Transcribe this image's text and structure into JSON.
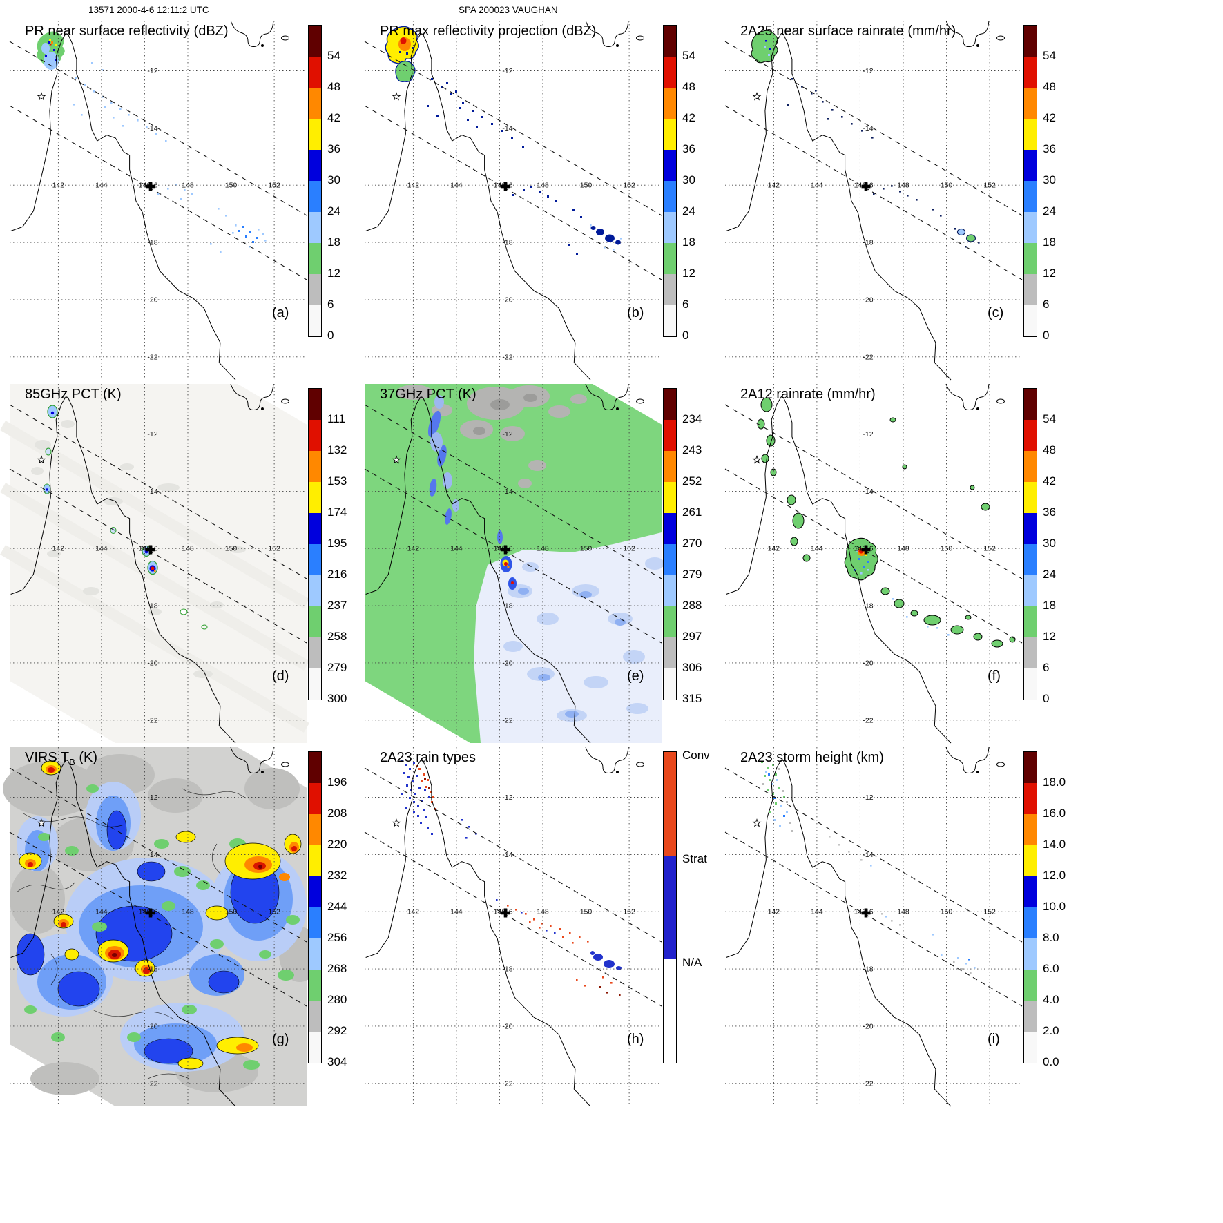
{
  "header": {
    "orbit": "13571 2000-4-6 12:11:2 UTC",
    "case": "SPA 200023 VAUGHAN"
  },
  "grid": {
    "lons": [
      "142",
      "144",
      "146",
      "148",
      "150",
      "152"
    ],
    "lats": [
      "-12",
      "-14",
      "-16",
      "-18",
      "-20",
      "-22"
    ]
  },
  "colors": {
    "scale": [
      "#600000",
      "#e01000",
      "#ff8800",
      "#ffee00",
      "#0000dd",
      "#2a7fff",
      "#9ec9ff",
      "#6fcf6f",
      "#bdbdbd",
      "#f8f8f8"
    ],
    "raintype": {
      "conv": "#e8481c",
      "strat": "#2222cc",
      "na": "#ffffff"
    }
  },
  "panels": [
    {
      "id": "a",
      "title": "PR near surface reflectivity (dBZ)",
      "letter": "(a)",
      "cbar_type": "scale",
      "cbar_ticks": [
        "54",
        "48",
        "42",
        "36",
        "30",
        "24",
        "18",
        "12",
        "6",
        "0"
      ]
    },
    {
      "id": "b",
      "title": "PR max reflectivity projection (dBZ)",
      "letter": "(b)",
      "cbar_type": "scale",
      "cbar_ticks": [
        "54",
        "48",
        "42",
        "36",
        "30",
        "24",
        "18",
        "12",
        "6",
        "0"
      ]
    },
    {
      "id": "c",
      "title": "2A25 near surface rainrate (mm/hr)",
      "letter": "(c)",
      "cbar_type": "scale",
      "cbar_ticks": [
        "54",
        "48",
        "42",
        "36",
        "30",
        "24",
        "18",
        "12",
        "6",
        "0"
      ]
    },
    {
      "id": "d",
      "title": "85GHz PCT (K)",
      "letter": "(d)",
      "cbar_type": "scale",
      "cbar_ticks": [
        "111",
        "132",
        "153",
        "174",
        "195",
        "216",
        "237",
        "258",
        "279",
        "300"
      ]
    },
    {
      "id": "e",
      "title": "37GHz PCT (K)",
      "letter": "(e)",
      "cbar_type": "scale",
      "cbar_ticks": [
        "234",
        "243",
        "252",
        "261",
        "270",
        "279",
        "288",
        "297",
        "306",
        "315"
      ]
    },
    {
      "id": "f",
      "title": "2A12 rainrate (mm/hr)",
      "letter": "(f)",
      "cbar_type": "scale",
      "cbar_ticks": [
        "54",
        "48",
        "42",
        "36",
        "30",
        "24",
        "18",
        "12",
        "6",
        "0"
      ]
    },
    {
      "id": "g",
      "title": "VIRS T",
      "title_sub": "B",
      "title_tail": " (K)",
      "letter": "(g)",
      "cbar_type": "scale",
      "cbar_ticks": [
        "196",
        "208",
        "220",
        "232",
        "244",
        "256",
        "268",
        "280",
        "292",
        "304"
      ]
    },
    {
      "id": "h",
      "title": "2A23 rain types",
      "letter": "(h)",
      "cbar_type": "raintype",
      "cbar_labels": [
        "Conv",
        "Strat",
        "N/A"
      ]
    },
    {
      "id": "i",
      "title": "2A23 storm height (km)",
      "letter": "(i)",
      "cbar_type": "scale",
      "cbar_ticks": [
        "18.0",
        "16.0",
        "14.0",
        "12.0",
        "10.0",
        "8.0",
        "6.0",
        "4.0",
        "2.0",
        "0.0"
      ]
    }
  ]
}
